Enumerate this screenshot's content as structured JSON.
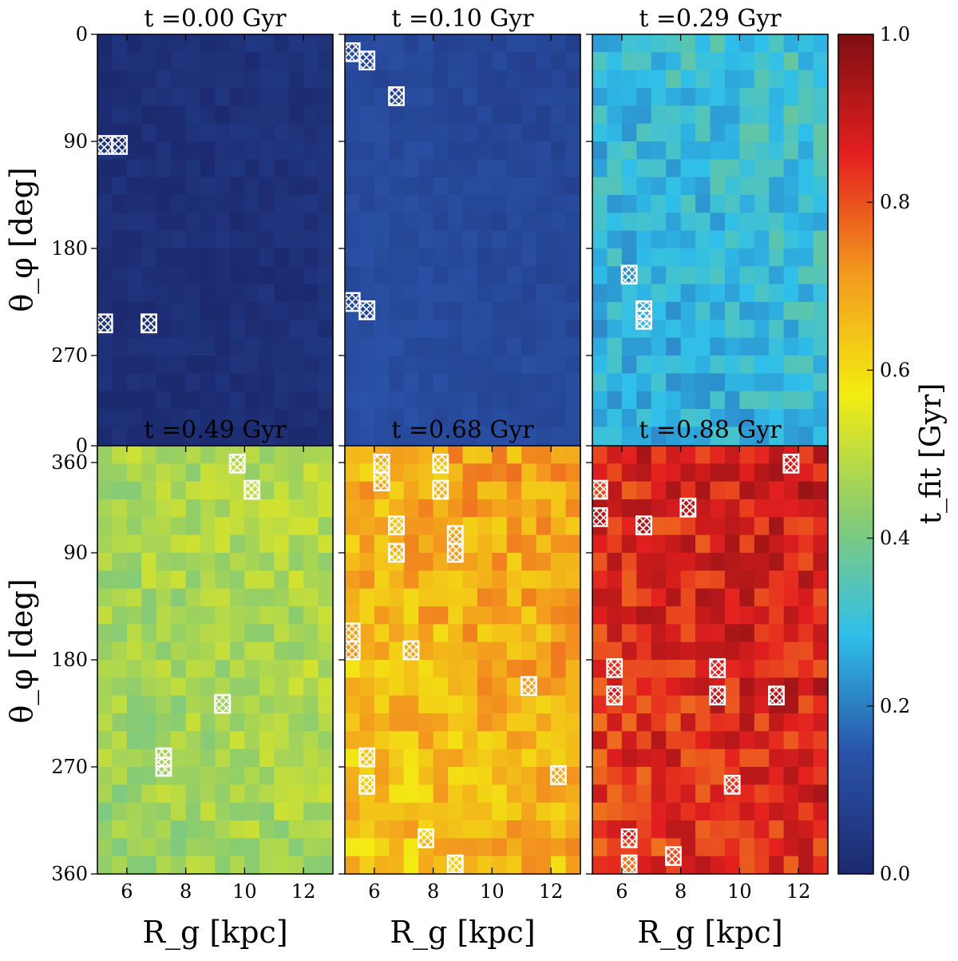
{
  "chart_data": {
    "type": "heatmap",
    "xlabel": "R_g [kpc]",
    "ylabel": "θ_φ [deg]",
    "xlim": [
      5,
      13
    ],
    "ylim": [
      0,
      360
    ],
    "xticks": [
      6,
      8,
      10,
      12
    ],
    "yticks": [
      0,
      90,
      180,
      270,
      360
    ],
    "grid_cells": {
      "nx": 16,
      "ny": 24
    },
    "colorbar": {
      "label": "t_fit [Gyr]",
      "range": [
        0.0,
        1.0
      ],
      "ticks": [
        "0.0",
        "0.2",
        "0.4",
        "0.6",
        "0.8",
        "1.0"
      ],
      "colormap_stops": [
        "#1c2a6f",
        "#2a52a8",
        "#2fbfea",
        "#8ccc6e",
        "#f3ec12",
        "#f39a1e",
        "#e41f1f",
        "#7e0f12"
      ]
    },
    "panels": [
      {
        "title": "t =0.00 Gyr",
        "time_gyr": 0.0,
        "base_value": 0.02,
        "gradient": 0.01,
        "noise": 0.02,
        "flagged": [
          [
            5.25,
            93
          ],
          [
            5.75,
            93
          ],
          [
            5.25,
            243
          ],
          [
            6.75,
            243
          ]
        ]
      },
      {
        "title": "t =0.10 Gyr",
        "time_gyr": 0.1,
        "base_value": 0.11,
        "gradient": -0.02,
        "noise": 0.02,
        "flagged": [
          [
            5.25,
            15
          ],
          [
            5.75,
            22
          ],
          [
            6.75,
            52
          ],
          [
            5.25,
            225
          ],
          [
            5.75,
            232
          ]
        ]
      },
      {
        "title": "t =0.29 Gyr",
        "time_gyr": 0.29,
        "base_value": 0.29,
        "gradient": 0.03,
        "noise": 0.06,
        "flagged": [
          [
            6.25,
            202
          ],
          [
            6.75,
            232
          ],
          [
            6.75,
            240
          ]
        ]
      },
      {
        "title": "t =0.49 Gyr",
        "time_gyr": 0.49,
        "base_value": 0.47,
        "gradient": 0.02,
        "noise": 0.05,
        "flagged": [
          [
            9.75,
            15
          ],
          [
            10.25,
            37
          ],
          [
            9.25,
            217
          ],
          [
            7.25,
            262
          ],
          [
            7.25,
            270
          ]
        ]
      },
      {
        "title": "t =0.68 Gyr",
        "time_gyr": 0.68,
        "base_value": 0.67,
        "gradient": 0.04,
        "noise": 0.07,
        "flagged": [
          [
            6.25,
            15
          ],
          [
            6.25,
            30
          ],
          [
            8.25,
            15
          ],
          [
            8.25,
            37
          ],
          [
            6.75,
            67
          ],
          [
            6.75,
            90
          ],
          [
            8.75,
            75
          ],
          [
            8.75,
            90
          ],
          [
            5.25,
            157
          ],
          [
            5.25,
            172
          ],
          [
            7.25,
            172
          ],
          [
            11.25,
            202
          ],
          [
            5.75,
            262
          ],
          [
            5.75,
            285
          ],
          [
            12.25,
            277
          ],
          [
            7.75,
            330
          ],
          [
            8.75,
            352
          ]
        ]
      },
      {
        "title": "t =0.88 Gyr",
        "time_gyr": 0.88,
        "base_value": 0.86,
        "gradient": 0.03,
        "noise": 0.08,
        "flagged": [
          [
            5.25,
            37
          ],
          [
            5.25,
            60
          ],
          [
            6.75,
            67
          ],
          [
            8.25,
            52
          ],
          [
            11.75,
            15
          ],
          [
            5.75,
            187
          ],
          [
            5.75,
            210
          ],
          [
            9.25,
            187
          ],
          [
            9.25,
            210
          ],
          [
            11.25,
            210
          ],
          [
            9.75,
            285
          ],
          [
            6.25,
            330
          ],
          [
            6.25,
            352
          ],
          [
            7.75,
            345
          ]
        ]
      }
    ]
  }
}
